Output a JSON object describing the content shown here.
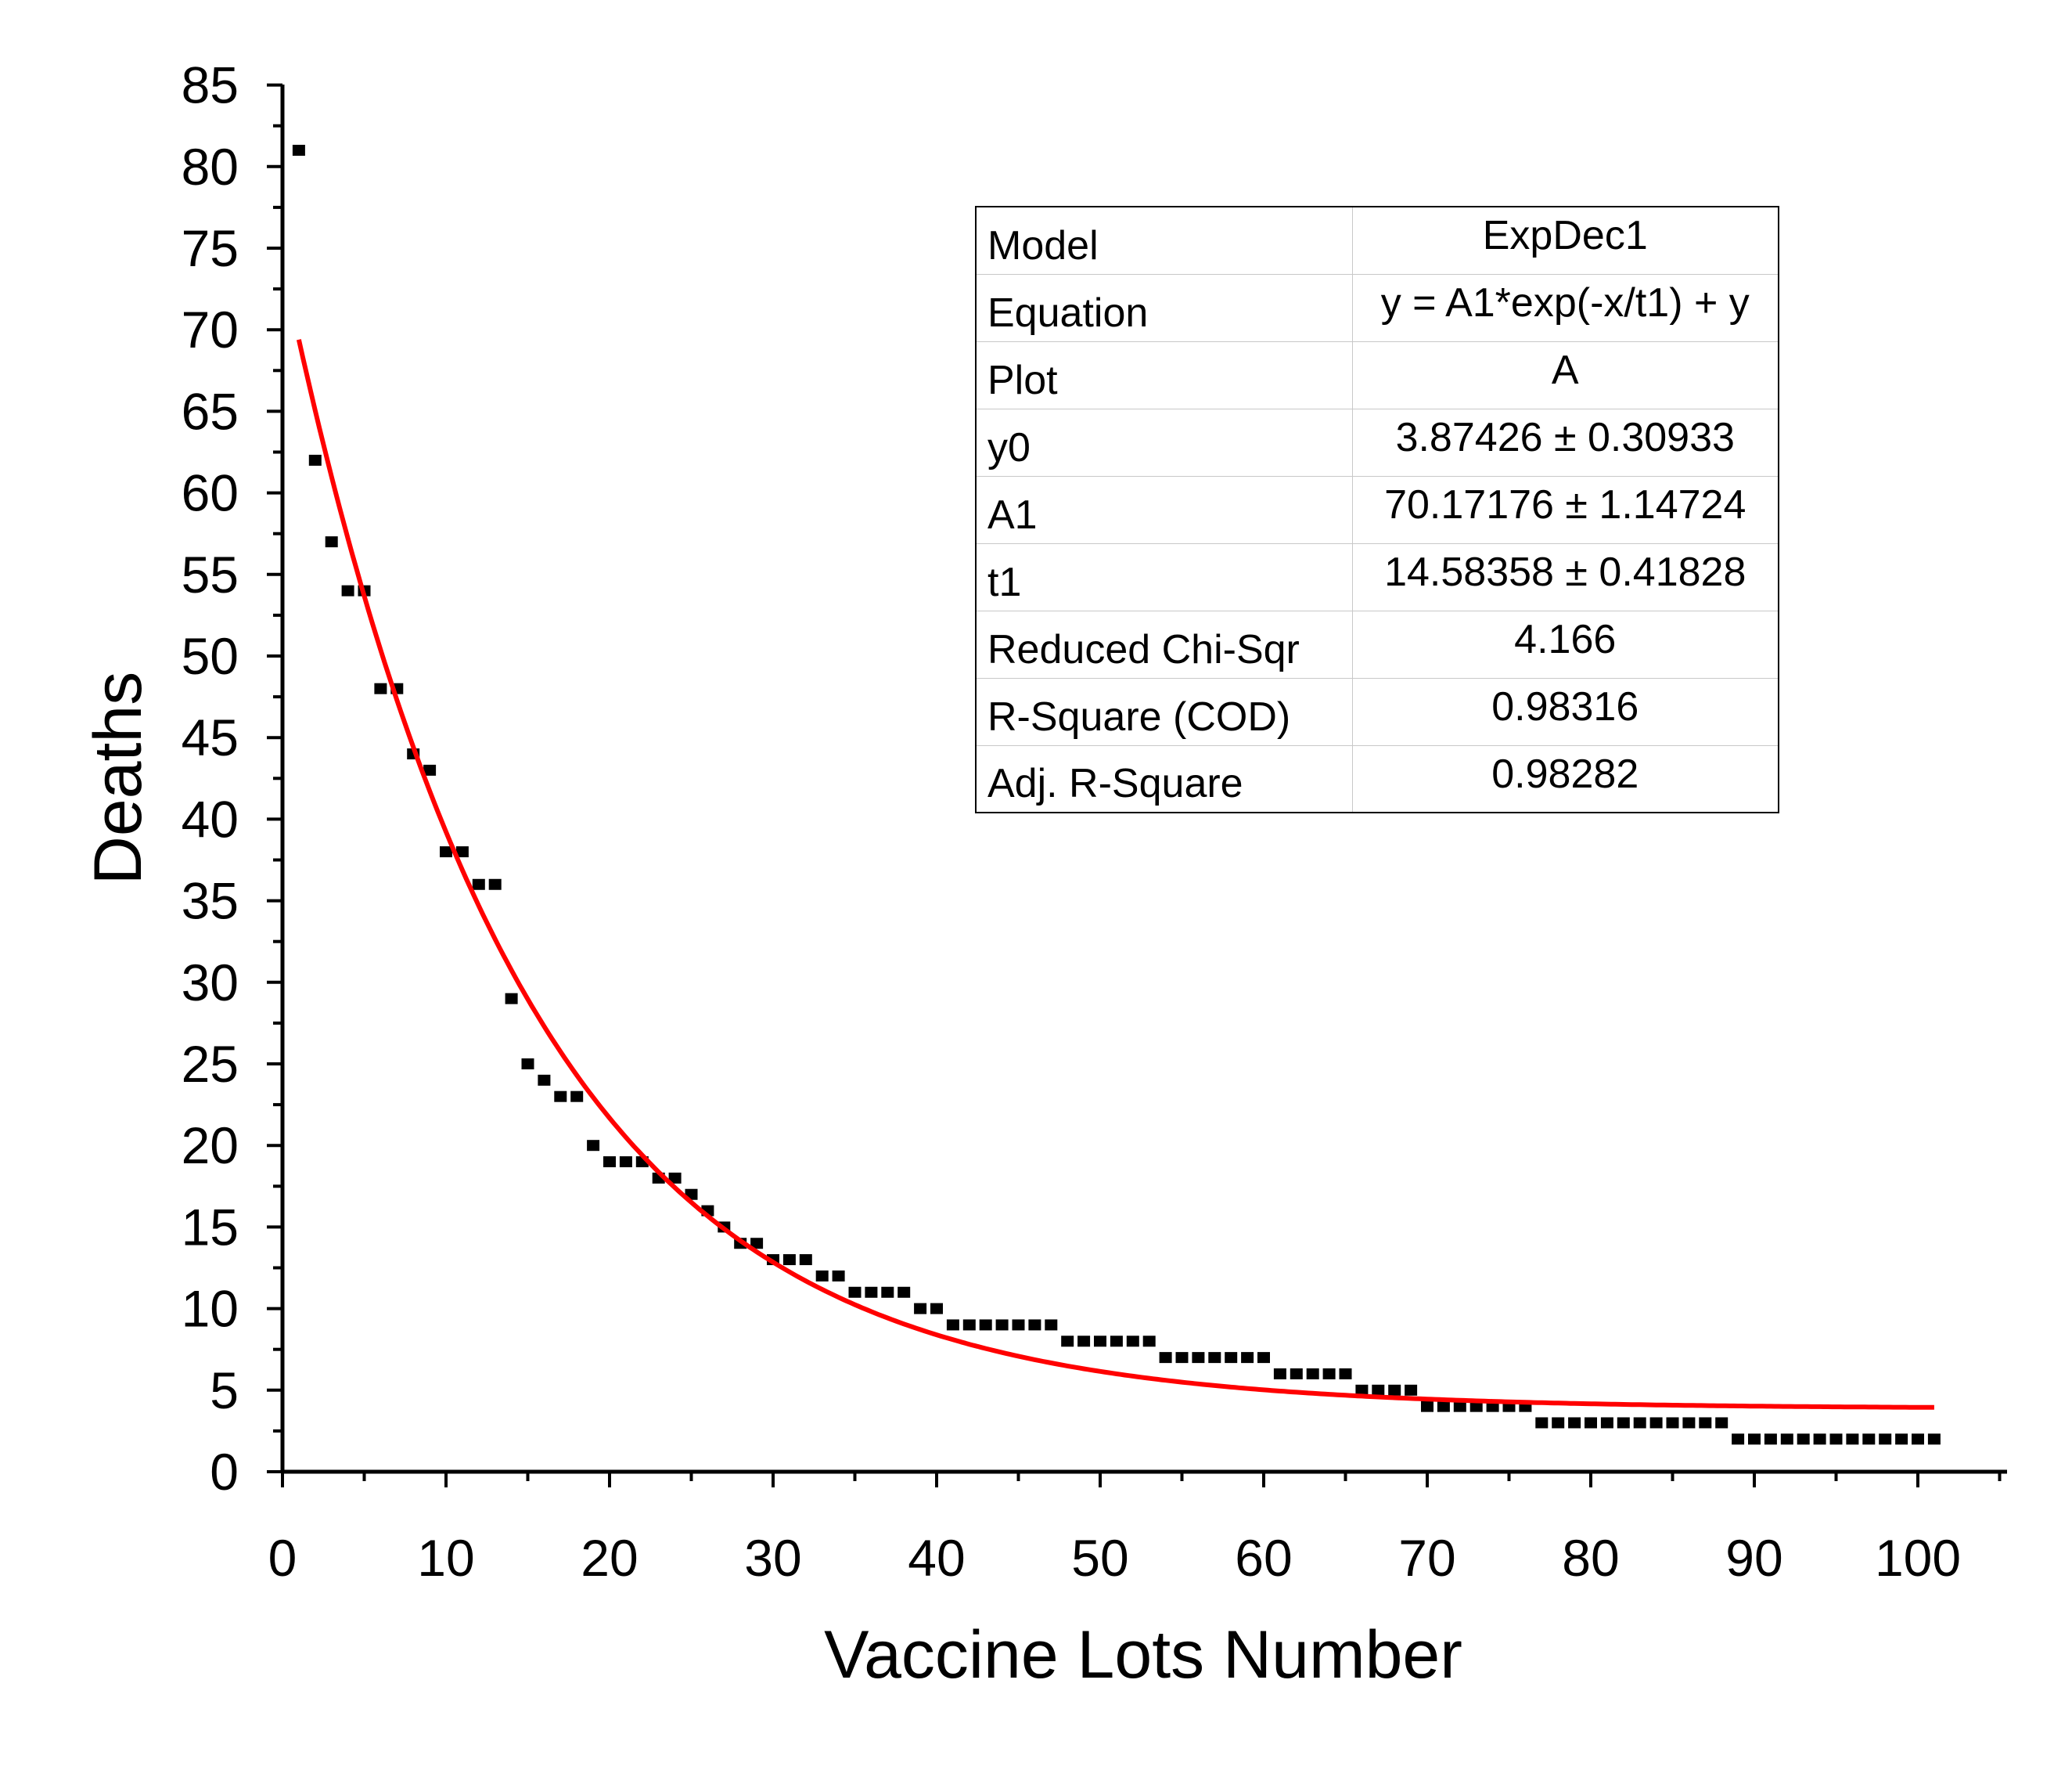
{
  "chart_data": {
    "type": "scatter",
    "title": "",
    "xlabel": "Vaccine Lots Number",
    "ylabel": "Deaths",
    "xlim": [
      0,
      105
    ],
    "ylim": [
      0,
      85
    ],
    "xticks": [
      "0",
      "10",
      "20",
      "30",
      "40",
      "50",
      "60",
      "70",
      "80",
      "90",
      "100"
    ],
    "yticks": [
      "0",
      "5",
      "10",
      "15",
      "20",
      "25",
      "30",
      "35",
      "40",
      "45",
      "50",
      "55",
      "60",
      "65",
      "70",
      "75",
      "80",
      "85"
    ],
    "grid": false,
    "colors": {
      "points": "#000000",
      "fit": "#ff0000"
    },
    "series": [
      {
        "kind": "scatter",
        "x": [
          1,
          2,
          3,
          4,
          5,
          6,
          7,
          8,
          9,
          10,
          11,
          12,
          13,
          14,
          15,
          16,
          17,
          18,
          19,
          20,
          21,
          22,
          23,
          24,
          25,
          26,
          27,
          28,
          29,
          30,
          31,
          32,
          33,
          34,
          35,
          36,
          37,
          38,
          39,
          40,
          41,
          42,
          43,
          44,
          45,
          46,
          47,
          48,
          49,
          50,
          51,
          52,
          53,
          54,
          55,
          56,
          57,
          58,
          59,
          60,
          61,
          62,
          63,
          64,
          65,
          66,
          67,
          68,
          69,
          70,
          71,
          72,
          73,
          74,
          75,
          76,
          77,
          78,
          79,
          80,
          81,
          82,
          83,
          84,
          85,
          86,
          87,
          88,
          89,
          90,
          91,
          92,
          93,
          94,
          95,
          96,
          97,
          98,
          99,
          100,
          101
        ],
        "y": [
          81,
          62,
          57,
          54,
          54,
          48,
          48,
          44,
          43,
          38,
          38,
          36,
          36,
          29,
          25,
          24,
          23,
          23,
          20,
          19,
          19,
          19,
          18,
          18,
          17,
          16,
          15,
          14,
          14,
          13,
          13,
          13,
          12,
          12,
          11,
          11,
          11,
          11,
          10,
          10,
          9,
          9,
          9,
          9,
          9,
          9,
          9,
          8,
          8,
          8,
          8,
          8,
          8,
          7,
          7,
          7,
          7,
          7,
          7,
          7,
          6,
          6,
          6,
          6,
          6,
          5,
          5,
          5,
          5,
          4,
          4,
          4,
          4,
          4,
          4,
          4,
          3,
          3,
          3,
          3,
          3,
          3,
          3,
          3,
          3,
          3,
          3,
          3,
          2,
          2,
          2,
          2,
          2,
          2,
          2,
          2,
          2,
          2,
          2,
          2,
          2
        ]
      },
      {
        "kind": "fit",
        "model": "ExpDec1",
        "y0": 3.87426,
        "A1": 70.17176,
        "t1": 14.58358,
        "x_range": [
          1,
          101
        ]
      }
    ]
  },
  "fit_table": [
    {
      "key": "Model",
      "value": "ExpDec1"
    },
    {
      "key": "Equation",
      "value": "y = A1*exp(-x/t1) + y"
    },
    {
      "key": "Plot",
      "value": "A"
    },
    {
      "key": "y0",
      "value": "3.87426 ± 0.30933"
    },
    {
      "key": "A1",
      "value": "70.17176 ± 1.14724"
    },
    {
      "key": "t1",
      "value": "14.58358 ± 0.41828"
    },
    {
      "key": "Reduced Chi-Sqr",
      "value": "4.166"
    },
    {
      "key": "R-Square (COD)",
      "value": "0.98316"
    },
    {
      "key": "Adj. R-Square",
      "value": "0.98282"
    }
  ]
}
